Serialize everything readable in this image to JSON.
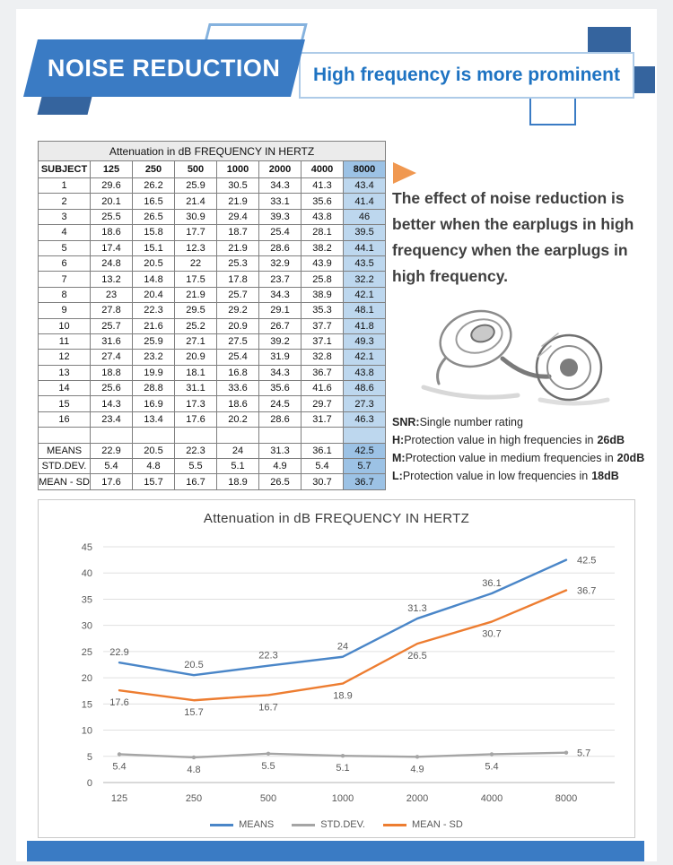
{
  "header": {
    "banner_title": "NOISE REDUCTION",
    "subtitle": "High frequency is more prominent"
  },
  "colors": {
    "accent": "#3a7bc4",
    "accent_dark": "#35649e",
    "subtitle_text": "#1e73c2",
    "table_highlight": "#bdd7ee",
    "table_highlight_strong": "#9cc2e5",
    "arrow_orange": "#f09850",
    "series_means": "#4a86c8",
    "series_stddev": "#a5a5a5",
    "series_mean_sd": "#ed7d31"
  },
  "table": {
    "title": "Attenuation in dB FREQUENCY IN HERTZ",
    "columns": [
      "SUBJECT",
      "125",
      "250",
      "500",
      "1000",
      "2000",
      "4000",
      "8000"
    ],
    "rows": [
      [
        1,
        29.6,
        26.2,
        25.9,
        30.5,
        34.3,
        41.3,
        43.4
      ],
      [
        2,
        20.1,
        16.5,
        21.4,
        21.9,
        33.1,
        35.6,
        41.4
      ],
      [
        3,
        25.5,
        26.5,
        30.9,
        29.4,
        39.3,
        43.8,
        46
      ],
      [
        4,
        18.6,
        15.8,
        17.7,
        18.7,
        25.4,
        28.1,
        39.5
      ],
      [
        5,
        17.4,
        15.1,
        12.3,
        21.9,
        28.6,
        38.2,
        44.1
      ],
      [
        6,
        24.8,
        20.5,
        22,
        25.3,
        32.9,
        43.9,
        43.5
      ],
      [
        7,
        13.2,
        14.8,
        17.5,
        17.8,
        23.7,
        25.8,
        32.2
      ],
      [
        8,
        23,
        20.4,
        21.9,
        25.7,
        34.3,
        38.9,
        42.1
      ],
      [
        9,
        27.8,
        22.3,
        29.5,
        29.2,
        29.1,
        35.3,
        48.1
      ],
      [
        10,
        25.7,
        21.6,
        25.2,
        20.9,
        26.7,
        37.7,
        41.8
      ],
      [
        11,
        31.6,
        25.9,
        27.1,
        27.5,
        39.2,
        37.1,
        49.3
      ],
      [
        12,
        27.4,
        23.2,
        20.9,
        25.4,
        31.9,
        32.8,
        42.1
      ],
      [
        13,
        18.8,
        19.9,
        18.1,
        16.8,
        34.3,
        36.7,
        43.8
      ],
      [
        14,
        25.6,
        28.8,
        31.1,
        33.6,
        35.6,
        41.6,
        48.6
      ],
      [
        15,
        14.3,
        16.9,
        17.3,
        18.6,
        24.5,
        29.7,
        27.3
      ],
      [
        16,
        23.4,
        13.4,
        17.6,
        20.2,
        28.6,
        31.7,
        46.3
      ]
    ],
    "summary": [
      [
        "MEANS",
        22.9,
        20.5,
        22.3,
        24,
        31.3,
        36.1,
        42.5
      ],
      [
        "STD.DEV.",
        5.4,
        4.8,
        5.5,
        5.1,
        4.9,
        5.4,
        5.7
      ],
      [
        "MEAN - SD",
        17.6,
        15.7,
        16.7,
        18.9,
        26.5,
        30.7,
        36.7
      ]
    ]
  },
  "aside": {
    "paragraph": "The effect of noise reduction is better when the earplugs in high frequency when the earplugs in high frequency.",
    "snr_lines": [
      {
        "label": "SNR:",
        "text": "Single number rating",
        "value": ""
      },
      {
        "label": "H:",
        "text": "Protection value in high frequencies in",
        "value": "26dB"
      },
      {
        "label": "M:",
        "text": "Protection value in medium frequencies in",
        "value": "20dB"
      },
      {
        "label": "L:",
        "text": "Protection value in low frequencies in",
        "value": "18dB"
      }
    ]
  },
  "chart_data": {
    "type": "line",
    "title": "Attenuation in dB FREQUENCY IN HERTZ",
    "categories": [
      "125",
      "250",
      "500",
      "1000",
      "2000",
      "4000",
      "8000"
    ],
    "series": [
      {
        "name": "MEANS",
        "color": "#4a86c8",
        "values": [
          22.9,
          20.5,
          22.3,
          24,
          31.3,
          36.1,
          42.5
        ]
      },
      {
        "name": "STD.DEV.",
        "color": "#a5a5a5",
        "values": [
          5.4,
          4.8,
          5.5,
          5.1,
          4.9,
          5.4,
          5.7
        ]
      },
      {
        "name": "MEAN - SD",
        "color": "#ed7d31",
        "values": [
          17.6,
          15.7,
          16.7,
          18.9,
          26.5,
          30.7,
          36.7
        ]
      }
    ],
    "xlabel": "",
    "ylabel": "",
    "ylim": [
      0,
      45
    ],
    "ytick_step": 5,
    "grid": true,
    "legend_position": "bottom"
  }
}
